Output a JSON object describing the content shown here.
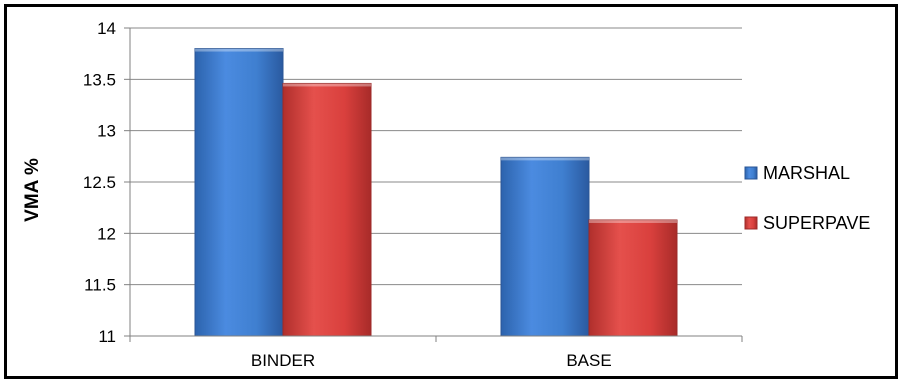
{
  "chart_data": {
    "type": "bar",
    "title": "",
    "xlabel": "",
    "ylabel": "VMA %",
    "categories": [
      "BINDER",
      "BASE"
    ],
    "series": [
      {
        "name": "MARSHAL",
        "values": [
          13.8,
          12.74
        ]
      },
      {
        "name": "SUPERPAVE",
        "values": [
          13.46,
          12.13
        ]
      }
    ],
    "ylim": [
      11,
      14
    ],
    "yticks": [
      "11",
      "11.5",
      "12",
      "12.5",
      "13",
      "13.5",
      "14"
    ],
    "grid": true,
    "legend_position": "right",
    "colors": {
      "MARSHAL": "#3f7fd0",
      "SUPERPAVE": "#d9403d"
    }
  }
}
